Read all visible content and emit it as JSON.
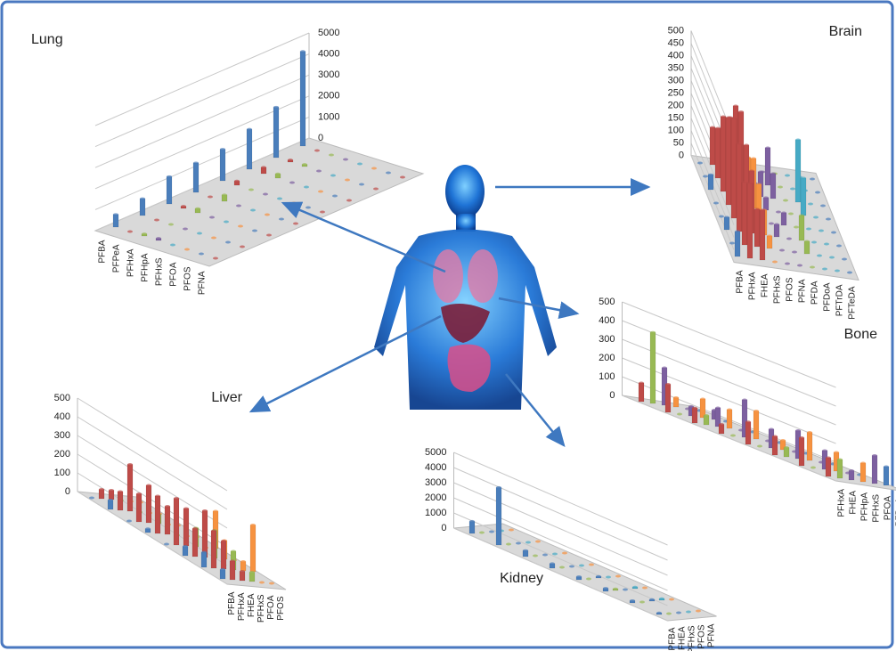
{
  "chart_data": [
    {
      "type": "bar",
      "title": "Lung",
      "categories": [
        null,
        null,
        null,
        null,
        null,
        null,
        null,
        null
      ],
      "ylim": [
        0,
        5000
      ],
      "yticks": [
        0,
        1000,
        2000,
        3000,
        4000,
        5000
      ],
      "series": [
        {
          "name": "PFBA",
          "color": "#4a7ebb",
          "values": [
            600,
            800,
            1300,
            1400,
            1500,
            1900,
            2400,
            4500
          ]
        },
        {
          "name": "PFPeA",
          "color": "#be4b48",
          "values": [
            0,
            0,
            100,
            0,
            200,
            300,
            100,
            0
          ]
        },
        {
          "name": "PFHxA",
          "color": "#98b954",
          "values": [
            100,
            0,
            200,
            300,
            0,
            200,
            100,
            0
          ]
        },
        {
          "name": "PFHpA",
          "color": "#7d60a0",
          "values": [
            100,
            0,
            0,
            0,
            0,
            0,
            0,
            0
          ]
        },
        {
          "name": "PFHxS",
          "color": "#46aac5",
          "values": [
            0,
            0,
            0,
            0,
            0,
            0,
            0,
            0
          ]
        },
        {
          "name": "PFOA",
          "color": "#f69240",
          "values": [
            0,
            0,
            0,
            0,
            0,
            0,
            0,
            0
          ]
        },
        {
          "name": "PFOS",
          "color": "#4a7ebb",
          "values": [
            0,
            0,
            0,
            0,
            0,
            0,
            0,
            0
          ]
        },
        {
          "name": "PFNA",
          "color": "#be4b48",
          "values": [
            0,
            0,
            0,
            0,
            0,
            0,
            0,
            0
          ]
        }
      ]
    },
    {
      "type": "bar",
      "title": "Brain",
      "categories": [
        null,
        null,
        null,
        null,
        null,
        null,
        null,
        null
      ],
      "ylim": [
        0,
        500
      ],
      "yticks": [
        0,
        50,
        100,
        150,
        200,
        250,
        300,
        350,
        400,
        450,
        500
      ],
      "series": [
        {
          "name": "PFBA",
          "color": "#4a7ebb",
          "values": [
            100,
            0,
            50,
            0,
            0,
            60,
            0,
            0
          ]
        },
        {
          "name": "PFHxA",
          "color": "#be4b48",
          "values": [
            300,
            250,
            350,
            400,
            350,
            300,
            200,
            150
          ]
        },
        {
          "name": "FHEA",
          "color": "#be4b48",
          "values": [
            200,
            150,
            250,
            300,
            380,
            350,
            250,
            100
          ]
        },
        {
          "name": "PFHxS",
          "color": "#f69240",
          "values": [
            0,
            50,
            100,
            150,
            200,
            150,
            100,
            50
          ]
        },
        {
          "name": "PFOS",
          "color": "#7d60a0",
          "values": [
            0,
            0,
            50,
            0,
            50,
            100,
            0,
            0
          ]
        },
        {
          "name": "PFNA",
          "color": "#7d60a0",
          "values": [
            0,
            0,
            0,
            50,
            0,
            100,
            150,
            0
          ]
        },
        {
          "name": "PFDA",
          "color": "#98b954",
          "values": [
            0,
            50,
            100,
            0,
            0,
            0,
            0,
            0
          ]
        },
        {
          "name": "PFDoA",
          "color": "#46aac5",
          "values": [
            0,
            0,
            0,
            0,
            150,
            250,
            0,
            0
          ]
        },
        {
          "name": "PFTrDA",
          "color": "#46aac5",
          "values": [
            0,
            0,
            0,
            0,
            0,
            0,
            0,
            0
          ]
        },
        {
          "name": "PFTeDA",
          "color": "#4a7ebb",
          "values": [
            0,
            0,
            0,
            0,
            0,
            0,
            0,
            0
          ]
        }
      ]
    },
    {
      "type": "bar",
      "title": "Bone",
      "categories": [
        null,
        null,
        null,
        null,
        null,
        null,
        null,
        null
      ],
      "ylim": [
        0,
        500
      ],
      "yticks": [
        0,
        100,
        200,
        300,
        400,
        500
      ],
      "series": [
        {
          "name": "PFHxA",
          "color": "#be4b48",
          "values": [
            100,
            150,
            100,
            120,
            50,
            80,
            150,
            100
          ]
        },
        {
          "name": "FHEA",
          "color": "#98b954",
          "values": [
            100,
            0,
            50,
            0,
            0,
            50,
            0,
            380
          ]
        },
        {
          "name": "PFHpA",
          "color": "#7d60a0",
          "values": [
            50,
            100,
            150,
            100,
            200,
            100,
            50,
            200
          ]
        },
        {
          "name": "PFHxS",
          "color": "#f69240",
          "values": [
            100,
            100,
            150,
            50,
            150,
            100,
            100,
            50
          ]
        },
        {
          "name": "PFOA",
          "color": "#7d60a0",
          "values": [
            150,
            0,
            0,
            0,
            0,
            0,
            50,
            0
          ]
        },
        {
          "name": "PFDoA",
          "color": "#4a7ebb",
          "values": [
            100,
            0,
            0,
            0,
            0,
            0,
            0,
            0
          ]
        }
      ]
    },
    {
      "type": "bar",
      "title": "Liver",
      "categories": [
        null,
        null,
        null,
        null,
        null,
        null,
        null,
        null
      ],
      "ylim": [
        0,
        500
      ],
      "yticks": [
        0,
        100,
        200,
        300,
        400,
        500
      ],
      "series": [
        {
          "name": "PFBA",
          "color": "#4a7ebb",
          "values": [
            50,
            80,
            50,
            0,
            20,
            0,
            50,
            0
          ]
        },
        {
          "name": "PFHxA",
          "color": "#be4b48",
          "values": [
            100,
            200,
            150,
            250,
            200,
            150,
            100,
            50
          ]
        },
        {
          "name": "FHEA",
          "color": "#be4b48",
          "values": [
            50,
            150,
            250,
            200,
            150,
            200,
            250,
            50
          ]
        },
        {
          "name": "PFHxS",
          "color": "#98b954",
          "values": [
            50,
            100,
            150,
            100,
            0,
            50,
            0,
            0
          ]
        },
        {
          "name": "PFOA",
          "color": "#f69240",
          "values": [
            0,
            50,
            100,
            0,
            0,
            0,
            0,
            0
          ]
        },
        {
          "name": "PFOS",
          "color": "#f69240",
          "values": [
            0,
            250,
            0,
            200,
            0,
            0,
            0,
            0
          ]
        }
      ]
    },
    {
      "type": "bar",
      "title": "Kidney",
      "categories": [
        null,
        null,
        null,
        null,
        null,
        null,
        null,
        null
      ],
      "ylim": [
        0,
        5000
      ],
      "yticks": [
        0,
        1000,
        2000,
        3000,
        4000,
        5000
      ],
      "series": [
        {
          "name": "PFBA",
          "color": "#4a7ebb",
          "values": [
            100,
            150,
            200,
            200,
            300,
            400,
            3800,
            800
          ]
        },
        {
          "name": "FHEA",
          "color": "#98b954",
          "values": [
            0,
            0,
            100,
            0,
            0,
            0,
            0,
            0
          ]
        },
        {
          "name": "PFHxS",
          "color": "#4a7ebb",
          "values": [
            0,
            100,
            0,
            100,
            0,
            0,
            0,
            0
          ]
        },
        {
          "name": "PFOS",
          "color": "#46aac5",
          "values": [
            0,
            100,
            100,
            0,
            0,
            0,
            0,
            0
          ]
        },
        {
          "name": "PFNA",
          "color": "#f69240",
          "values": [
            0,
            0,
            0,
            0,
            0,
            0,
            0,
            0
          ]
        }
      ]
    }
  ]
}
